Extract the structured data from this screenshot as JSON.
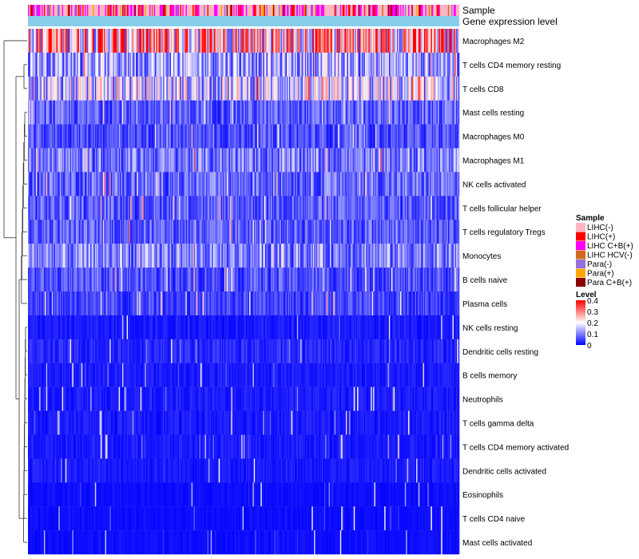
{
  "chart_data": {
    "type": "heatmap",
    "annotation_tracks": [
      "Sample",
      "Gene expression level"
    ],
    "rows": [
      {
        "label": "Macrophages M2",
        "mean": 0.26
      },
      {
        "label": "T cells CD4 memory resting",
        "mean": 0.13
      },
      {
        "label": "T cells CD8",
        "mean": 0.16
      },
      {
        "label": "Mast cells resting",
        "mean": 0.07
      },
      {
        "label": "Macrophages M0",
        "mean": 0.06
      },
      {
        "label": "Macrophages M1",
        "mean": 0.09
      },
      {
        "label": "NK cells activated",
        "mean": 0.08
      },
      {
        "label": "T cells follicular helper",
        "mean": 0.07
      },
      {
        "label": "T cells regulatory  Tregs",
        "mean": 0.07
      },
      {
        "label": "Monocytes",
        "mean": 0.1
      },
      {
        "label": "B cells naive",
        "mean": 0.06
      },
      {
        "label": "Plasma cells",
        "mean": 0.05
      },
      {
        "label": "NK cells resting",
        "mean": 0.02
      },
      {
        "label": "Dendritic cells resting",
        "mean": 0.03
      },
      {
        "label": "B cells memory",
        "mean": 0.02
      },
      {
        "label": "Neutrophils",
        "mean": 0.02
      },
      {
        "label": "T cells gamma delta",
        "mean": 0.02
      },
      {
        "label": "T cells CD4 memory activated",
        "mean": 0.02
      },
      {
        "label": "Dendritic cells activated",
        "mean": 0.02
      },
      {
        "label": "Eosinophils",
        "mean": 0.01
      },
      {
        "label": "T cells CD4 naive",
        "mean": 0.01
      },
      {
        "label": "Mast cells activated",
        "mean": 0.01
      }
    ],
    "legend_sample": {
      "title": "Sample",
      "entries": [
        {
          "label": "LIHC(-)",
          "color": "#ffb6c1"
        },
        {
          "label": "LIHC(+)",
          "color": "#ff0000"
        },
        {
          "label": "LIHC C+B(+)",
          "color": "#ff00ff"
        },
        {
          "label": "LIHC HCV(-)",
          "color": "#d2691e"
        },
        {
          "label": "Para(-)",
          "color": "#9370db"
        },
        {
          "label": "Para(+)",
          "color": "#ffa500"
        },
        {
          "label": "Para C+B(+)",
          "color": "#8b0000"
        }
      ]
    },
    "legend_level": {
      "title": "Level",
      "ticks": [
        "0.4",
        "0.3",
        "0.2",
        "0.1",
        "0"
      ],
      "range": [
        0,
        0.4
      ],
      "colors": [
        "#0000ff",
        "#ffffff",
        "#ff0000"
      ]
    },
    "expression_track_color": "#87ceeb"
  }
}
